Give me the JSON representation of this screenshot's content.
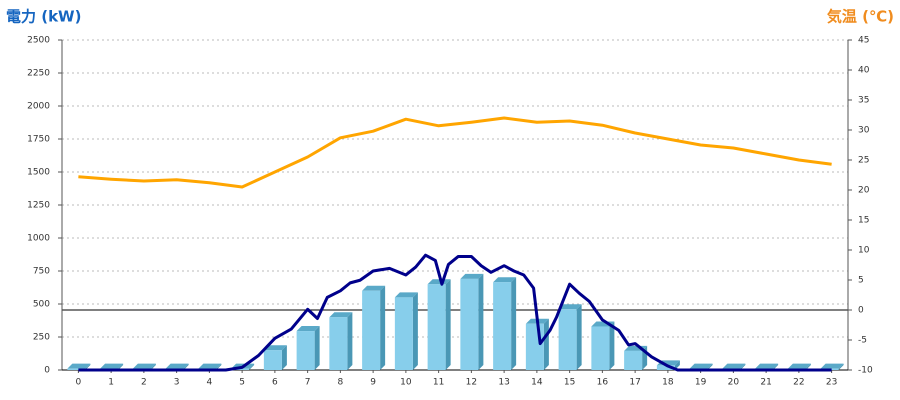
{
  "chart_data": {
    "type": "combo",
    "y_label": "電力 (kW)",
    "y_label_color": "#1565c0",
    "y2_label": "気温 (℃)",
    "y2_label_color": "#f08c1e",
    "categories": [
      "0",
      "1",
      "2",
      "3",
      "4",
      "5",
      "6",
      "7",
      "8",
      "9",
      "10",
      "11",
      "12",
      "13",
      "14",
      "15",
      "16",
      "17",
      "18",
      "19",
      "20",
      "21",
      "22",
      "23"
    ],
    "ylim": [
      0,
      2500
    ],
    "yticks": [
      0,
      250,
      500,
      750,
      1000,
      1250,
      1500,
      1750,
      2000,
      2250,
      2500
    ],
    "y2lim": [
      -10,
      45
    ],
    "y2ticks": [
      -10,
      -5,
      0,
      5,
      10,
      15,
      20,
      25,
      30,
      35,
      40,
      45
    ],
    "grid": true,
    "series": [
      {
        "type": "bar",
        "color": "#87ceeb",
        "values": [
          10,
          10,
          10,
          10,
          10,
          10,
          150,
          295,
          400,
          600,
          550,
          650,
          690,
          665,
          350,
          460,
          330,
          145,
          35,
          10,
          10,
          10,
          10,
          10
        ]
      },
      {
        "type": "line",
        "color": "#00008b",
        "x": [
          0,
          1,
          2,
          3,
          4,
          4.5,
          5,
          5.5,
          6,
          6.5,
          7,
          7.3,
          7.6,
          8,
          8.3,
          8.6,
          9,
          9.5,
          10,
          10.3,
          10.6,
          10.9,
          11.1,
          11.3,
          11.6,
          12,
          12.3,
          12.6,
          13,
          13.3,
          13.6,
          13.9,
          14.1,
          14.4,
          14.6,
          15,
          15.3,
          15.6,
          16,
          16.5,
          16.8,
          17,
          17.5,
          18,
          18.3,
          19,
          20,
          21,
          22,
          23
        ],
        "values": [
          0,
          0,
          0,
          0,
          0,
          0,
          20,
          110,
          240,
          310,
          460,
          390,
          550,
          600,
          660,
          680,
          750,
          770,
          720,
          780,
          870,
          830,
          650,
          800,
          860,
          860,
          790,
          740,
          790,
          750,
          720,
          620,
          200,
          300,
          400,
          650,
          580,
          520,
          380,
          300,
          190,
          200,
          100,
          30,
          0,
          0,
          0,
          0,
          0,
          0
        ]
      },
      {
        "type": "line",
        "axis": "y2",
        "color": "#ffa500",
        "values": [
          22.2,
          21.8,
          21.5,
          21.7,
          21.2,
          20.5,
          23,
          25.5,
          28.7,
          29.8,
          31.8,
          30.7,
          31.3,
          32,
          31.3,
          31.5,
          30.8,
          29.5,
          28.5,
          27.5,
          27,
          26,
          25,
          24.3
        ]
      }
    ]
  }
}
